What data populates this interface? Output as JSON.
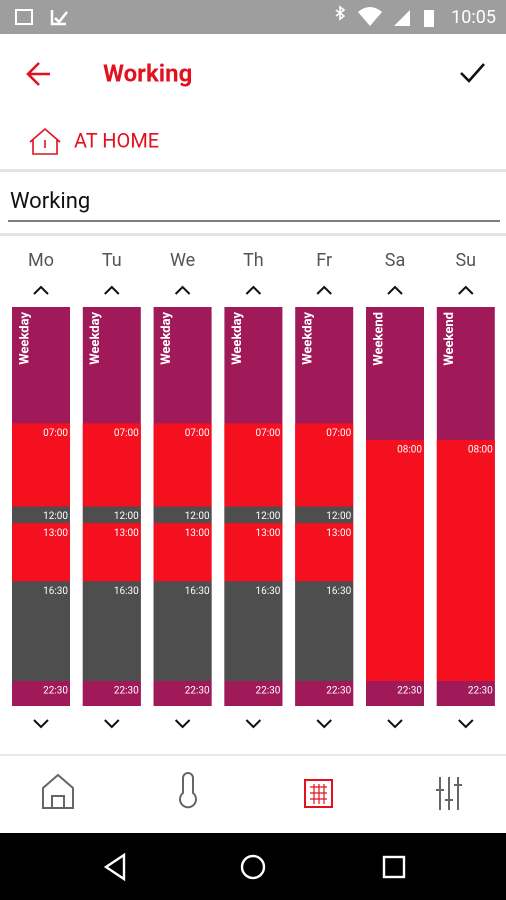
{
  "status_bar": {
    "time": "10:05"
  },
  "header": {
    "title": "Working"
  },
  "mode": {
    "label": "AT HOME"
  },
  "schedule_name": "Working",
  "days": [
    {
      "name": "Mo",
      "profile": "Weekday",
      "segments": [
        {
          "start": "07:00",
          "color": "#f5101f"
        },
        {
          "start": "12:00",
          "color": "#4e4e4e"
        },
        {
          "start": "13:00",
          "color": "#f5101f"
        },
        {
          "start": "16:30",
          "color": "#4e4e4e"
        },
        {
          "start": "22:30",
          "color": "#a01a5a"
        }
      ]
    },
    {
      "name": "Tu",
      "profile": "Weekday",
      "segments": [
        {
          "start": "07:00",
          "color": "#f5101f"
        },
        {
          "start": "12:00",
          "color": "#4e4e4e"
        },
        {
          "start": "13:00",
          "color": "#f5101f"
        },
        {
          "start": "16:30",
          "color": "#4e4e4e"
        },
        {
          "start": "22:30",
          "color": "#a01a5a"
        }
      ]
    },
    {
      "name": "We",
      "profile": "Weekday",
      "segments": [
        {
          "start": "07:00",
          "color": "#f5101f"
        },
        {
          "start": "12:00",
          "color": "#4e4e4e"
        },
        {
          "start": "13:00",
          "color": "#f5101f"
        },
        {
          "start": "16:30",
          "color": "#4e4e4e"
        },
        {
          "start": "22:30",
          "color": "#a01a5a"
        }
      ]
    },
    {
      "name": "Th",
      "profile": "Weekday",
      "segments": [
        {
          "start": "07:00",
          "color": "#f5101f"
        },
        {
          "start": "12:00",
          "color": "#4e4e4e"
        },
        {
          "start": "13:00",
          "color": "#f5101f"
        },
        {
          "start": "16:30",
          "color": "#4e4e4e"
        },
        {
          "start": "22:30",
          "color": "#a01a5a"
        }
      ]
    },
    {
      "name": "Fr",
      "profile": "Weekday",
      "segments": [
        {
          "start": "07:00",
          "color": "#f5101f"
        },
        {
          "start": "12:00",
          "color": "#4e4e4e"
        },
        {
          "start": "13:00",
          "color": "#f5101f"
        },
        {
          "start": "16:30",
          "color": "#4e4e4e"
        },
        {
          "start": "22:30",
          "color": "#a01a5a"
        }
      ]
    },
    {
      "name": "Sa",
      "profile": "Weekend",
      "segments": [
        {
          "start": "08:00",
          "color": "#f5101f"
        },
        {
          "start": "22:30",
          "color": "#a01a5a"
        }
      ]
    },
    {
      "name": "Su",
      "profile": "Weekend",
      "segments": [
        {
          "start": "08:00",
          "color": "#f5101f"
        },
        {
          "start": "22:30",
          "color": "#a01a5a"
        }
      ]
    }
  ]
}
